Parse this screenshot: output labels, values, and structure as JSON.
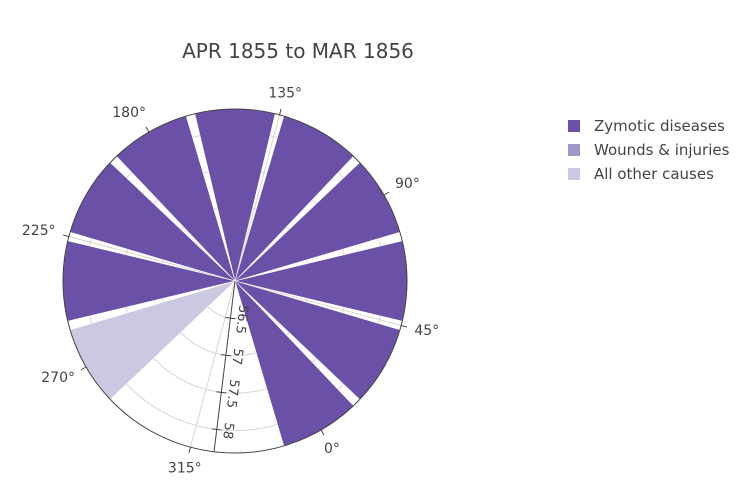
{
  "chart_data": {
    "type": "polar-bar",
    "title": "APR 1855 to MAR 1856",
    "angular_ticks": [
      "0°",
      "45°",
      "90°",
      "135°",
      "180°",
      "225°",
      "270°",
      "315°"
    ],
    "angular_tick_values": [
      0,
      45,
      90,
      135,
      180,
      225,
      270,
      315
    ],
    "angular_direction": "counterclockwise",
    "angular_rotation_deg": -60,
    "radial_range": [
      56,
      58.3
    ],
    "radial_ticks": [
      "56.5",
      "57",
      "57.5",
      "58"
    ],
    "radial_tick_values": [
      56.5,
      57,
      57.5,
      58
    ],
    "radial_axis_angle_deg": 323,
    "legend": {
      "position": "right"
    },
    "series": [
      {
        "name": "Zymotic diseases",
        "color": "#6a50a7",
        "thetas": [
          0,
          30,
          60,
          90,
          120,
          150,
          180,
          210,
          240
        ],
        "r": [
          58.3,
          58.3,
          58.3,
          58.3,
          58.3,
          58.3,
          58.3,
          58.3,
          58.3
        ]
      },
      {
        "name": "Wounds & injuries",
        "color": "#9e9ac8",
        "thetas": [],
        "r": []
      },
      {
        "name": "All other causes",
        "color": "#cbc9e2",
        "thetas": [
          270
        ],
        "r": [
          58.3
        ]
      }
    ]
  }
}
